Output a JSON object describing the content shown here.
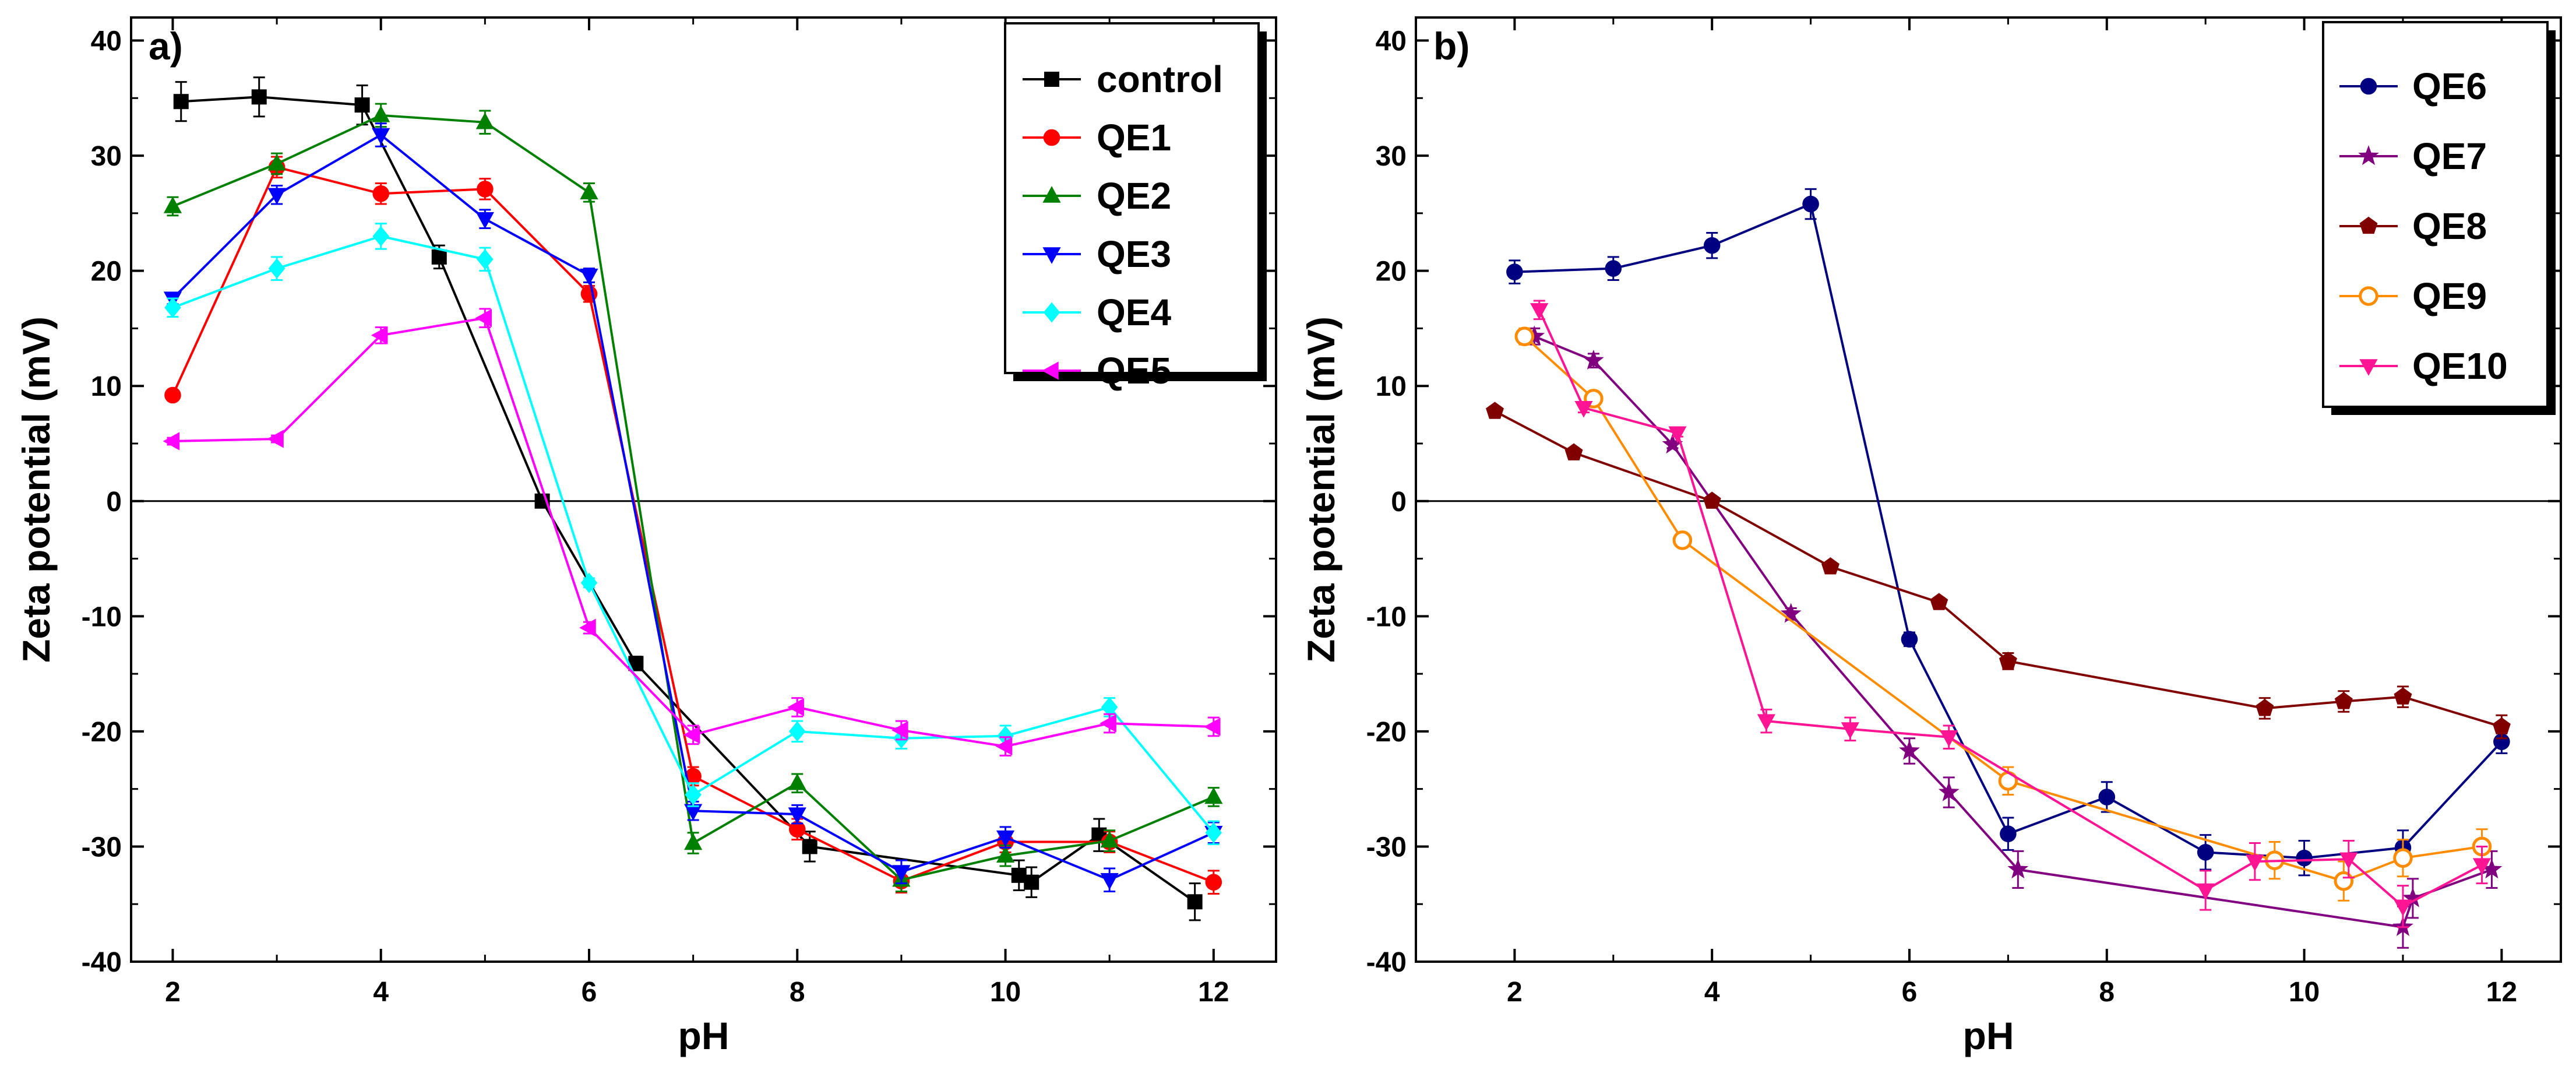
{
  "chart_data": [
    {
      "type": "line",
      "panel_label": "a)",
      "xlabel": "pH",
      "ylabel": "Zeta potential (mV)",
      "xlim": [
        1.6,
        12.6
      ],
      "ylim": [
        -40,
        42
      ],
      "x_ticks": [
        2,
        4,
        6,
        8,
        10,
        12
      ],
      "y_ticks": [
        -40,
        -30,
        -20,
        -10,
        0,
        10,
        20,
        30,
        40
      ],
      "x_tick_labels": [
        "2",
        "4",
        "6",
        "8",
        "10",
        "12"
      ],
      "y_tick_labels": [
        "-40",
        "-30",
        "-20",
        "-10",
        "0",
        "10",
        "20",
        "30",
        "40"
      ],
      "zero_line": 0,
      "legend_position": "top-right",
      "series": [
        {
          "name": "control",
          "color": "#000000",
          "marker": "square",
          "x": [
            2.08,
            2.83,
            3.82,
            4.56,
            5.55,
            6.45,
            8.12,
            10.13,
            10.25,
            10.9,
            11.82
          ],
          "y": [
            34.7,
            35.1,
            34.4,
            21.2,
            0.0,
            -14.1,
            -30.0,
            -32.5,
            -33.1,
            -29.0,
            -34.8
          ],
          "err": [
            1.7,
            1.7,
            1.7,
            1.0,
            0.3,
            0.6,
            1.3,
            1.3,
            1.3,
            1.4,
            1.6
          ]
        },
        {
          "name": "QE1",
          "color": "#ff0000",
          "marker": "circle",
          "x": [
            2.0,
            3.0,
            4.0,
            5.0,
            6.0,
            7.0,
            8.0,
            9.0,
            10.0,
            11.0,
            12.0
          ],
          "y": [
            9.2,
            29.0,
            26.7,
            27.1,
            18.0,
            -23.9,
            -28.5,
            -33.0,
            -29.6,
            -29.6,
            -33.1
          ],
          "err": [
            0.3,
            0.9,
            0.9,
            0.9,
            0.7,
            0.8,
            0.9,
            1.0,
            0.9,
            0.9,
            1.0
          ]
        },
        {
          "name": "QE2",
          "color": "#008000",
          "marker": "triangle-up",
          "x": [
            2.0,
            3.0,
            4.0,
            5.0,
            6.0,
            7.0,
            8.0,
            9.0,
            10.0,
            11.0,
            12.0
          ],
          "y": [
            25.6,
            29.3,
            33.5,
            32.9,
            26.8,
            -29.7,
            -24.5,
            -32.9,
            -30.8,
            -29.5,
            -25.7
          ],
          "err": [
            0.8,
            0.9,
            1.0,
            1.0,
            0.8,
            0.9,
            0.8,
            1.0,
            0.9,
            0.9,
            0.8
          ]
        },
        {
          "name": "QE3",
          "color": "#0000ff",
          "marker": "triangle-down",
          "x": [
            2.0,
            3.0,
            4.0,
            5.0,
            6.0,
            7.0,
            8.0,
            9.0,
            10.0,
            11.0,
            12.0
          ],
          "y": [
            17.6,
            26.6,
            31.8,
            24.5,
            19.6,
            -26.9,
            -27.2,
            -32.2,
            -29.2,
            -32.9,
            -28.8
          ],
          "err": [
            0.5,
            0.8,
            1.0,
            0.8,
            0.6,
            0.8,
            0.8,
            1.0,
            0.9,
            1.0,
            0.9
          ]
        },
        {
          "name": "QE4",
          "color": "#00ffff",
          "marker": "diamond",
          "x": [
            2.0,
            3.0,
            4.0,
            5.0,
            6.0,
            7.0,
            8.0,
            9.0,
            10.0,
            11.0,
            12.0
          ],
          "y": [
            16.8,
            20.2,
            23.0,
            21.0,
            -7.1,
            -25.5,
            -20.0,
            -20.6,
            -20.4,
            -17.9,
            -28.8
          ],
          "err": [
            0.8,
            1.0,
            1.1,
            1.0,
            0.4,
            1.0,
            0.9,
            0.9,
            0.9,
            0.8,
            1.0
          ]
        },
        {
          "name": "QE5",
          "color": "#ff00ff",
          "marker": "triangle-left",
          "x": [
            2.0,
            3.0,
            4.0,
            5.0,
            6.0,
            7.0,
            8.0,
            9.0,
            10.0,
            11.0,
            12.0
          ],
          "y": [
            5.2,
            5.4,
            14.4,
            15.9,
            -11.0,
            -20.3,
            -17.9,
            -19.9,
            -21.3,
            -19.3,
            -19.6
          ],
          "err": [
            0.3,
            0.3,
            0.7,
            0.8,
            0.5,
            0.8,
            0.8,
            0.8,
            0.8,
            0.8,
            0.8
          ]
        }
      ]
    },
    {
      "type": "line",
      "panel_label": "b)",
      "xlabel": "pH",
      "ylabel": "Zeta potential (mV)",
      "xlim": [
        1.0,
        12.6
      ],
      "ylim": [
        -40,
        42
      ],
      "x_ticks": [
        2,
        4,
        6,
        8,
        10,
        12
      ],
      "y_ticks": [
        -40,
        -30,
        -20,
        -10,
        0,
        10,
        20,
        30,
        40
      ],
      "x_tick_labels": [
        "2",
        "4",
        "6",
        "8",
        "10",
        "12"
      ],
      "y_tick_labels": [
        "-40",
        "-30",
        "-20",
        "-10",
        "0",
        "10",
        "20",
        "30",
        "40"
      ],
      "zero_line": 0,
      "legend_position": "top-right",
      "series": [
        {
          "name": "QE6",
          "color": "#000080",
          "marker": "circle",
          "x": [
            2.0,
            3.0,
            4.0,
            5.0,
            6.0,
            7.0,
            8.0,
            9.0,
            10.0,
            11.0,
            12.0
          ],
          "y": [
            19.9,
            20.2,
            22.2,
            25.8,
            -12.0,
            -28.9,
            -25.7,
            -30.5,
            -31.0,
            -30.1,
            -20.9
          ],
          "err": [
            1.0,
            1.0,
            1.1,
            1.3,
            0.6,
            1.4,
            1.3,
            1.5,
            1.5,
            1.5,
            1.0
          ]
        },
        {
          "name": "QE7",
          "color": "#800080",
          "marker": "star",
          "x": [
            2.2,
            2.8,
            3.6,
            4.8,
            6.0,
            6.4,
            7.1,
            11.0,
            11.1,
            11.9
          ],
          "y": [
            14.3,
            12.2,
            4.9,
            -9.8,
            -21.7,
            -25.3,
            -32.0,
            -37.0,
            -34.5,
            -32.0
          ],
          "err": [
            0.7,
            0.6,
            0.3,
            0.5,
            1.1,
            1.3,
            1.6,
            1.8,
            1.7,
            1.6
          ]
        },
        {
          "name": "QE8",
          "color": "#800000",
          "marker": "pentagon",
          "x": [
            1.8,
            2.6,
            4.0,
            5.2,
            6.3,
            7.0,
            9.6,
            10.4,
            11.0,
            12.0
          ],
          "y": [
            7.8,
            4.2,
            0.0,
            -5.7,
            -8.8,
            -13.9,
            -18.0,
            -17.4,
            -17.0,
            -19.6
          ],
          "err": [
            0.4,
            0.2,
            0.2,
            0.3,
            0.4,
            0.7,
            0.9,
            0.9,
            0.9,
            1.0
          ]
        },
        {
          "name": "QE9",
          "color": "#ff8c00",
          "marker": "circle-open",
          "x": [
            2.1,
            2.8,
            3.7,
            7.0,
            9.7,
            10.4,
            11.0,
            11.8
          ],
          "y": [
            14.3,
            8.9,
            -3.4,
            -24.3,
            -31.2,
            -33.0,
            -31.0,
            -30.0
          ],
          "err": [
            0.7,
            0.4,
            0.2,
            1.2,
            1.6,
            1.7,
            1.6,
            1.5
          ]
        },
        {
          "name": "QE10",
          "color": "#ff1493",
          "marker": "triangle-down",
          "x": [
            2.25,
            2.7,
            3.65,
            4.55,
            5.4,
            6.4,
            9.0,
            9.5,
            10.45,
            11.0,
            11.8
          ],
          "y": [
            16.6,
            8.1,
            5.9,
            -19.1,
            -19.8,
            -20.5,
            -33.8,
            -31.3,
            -31.1,
            -35.2,
            -31.6
          ],
          "err": [
            0.8,
            0.4,
            0.3,
            1.0,
            1.0,
            1.0,
            1.7,
            1.6,
            1.6,
            1.8,
            1.6
          ]
        }
      ]
    }
  ]
}
